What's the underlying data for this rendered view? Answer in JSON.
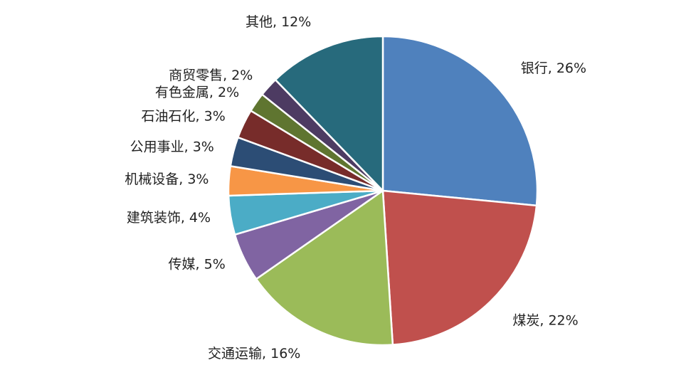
{
  "chart_data": {
    "type": "pie",
    "values": [
      26,
      22,
      16,
      5,
      4,
      3,
      3,
      3,
      2,
      2,
      12
    ],
    "value_labels": [
      "银行, 26%",
      "煤炭, 22%",
      "交通运输, 16%",
      "传媒, 5%",
      "建筑装饰, 4%",
      "机械设备, 3%",
      "公用事业, 3%",
      "石油石化, 3%",
      "有色金属, 2%",
      "商贸零售, 2%",
      "其他, 12%"
    ],
    "colors": [
      "#4f81bd",
      "#c0504d",
      "#9bbb59",
      "#8064a2",
      "#4bacc6",
      "#f79646",
      "#2c4d75",
      "#772c2a",
      "#5f7530",
      "#4d3b62",
      "#276a7c"
    ]
  }
}
